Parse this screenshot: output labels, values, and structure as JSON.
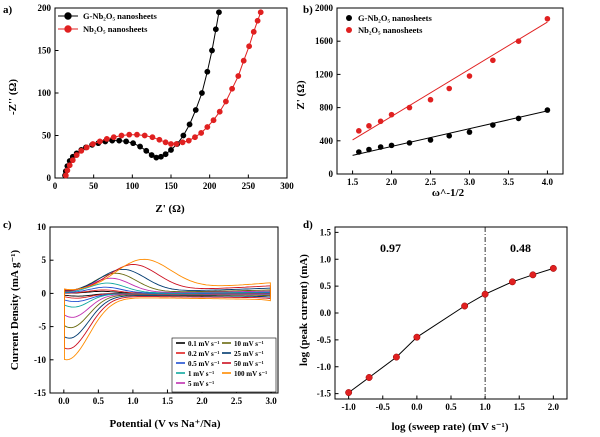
{
  "chart_data": [
    {
      "panel": "a)",
      "type": "line",
      "xlabel": "Z' (Ω)",
      "ylabel": "-Z'' (Ω)",
      "xlim": [
        0,
        300
      ],
      "ylim": [
        0,
        200
      ],
      "xticks": [
        0,
        50,
        100,
        150,
        200,
        250,
        300
      ],
      "yticks": [
        0,
        50,
        100,
        150,
        200
      ],
      "legend_position": "top-left",
      "series": [
        {
          "name": "G-Nb₂O₅ nanosheets",
          "color": "#000000",
          "x": [
            13,
            14,
            16,
            19,
            23,
            28,
            34,
            40,
            48,
            56,
            65,
            74,
            83,
            92,
            101,
            110,
            118,
            125,
            131,
            137,
            143,
            150,
            158,
            166,
            174,
            182,
            190,
            197,
            203,
            208,
            212
          ],
          "y": [
            3,
            8,
            14,
            20,
            25,
            29,
            33,
            36,
            39,
            41,
            43,
            44,
            44,
            43,
            41,
            37,
            32,
            27,
            24,
            25,
            28,
            33,
            40,
            50,
            63,
            80,
            100,
            125,
            150,
            175,
            195
          ]
        },
        {
          "name": "Nb₂O₅ nanosheets",
          "color": "#e02020",
          "x": [
            14,
            16,
            19,
            23,
            28,
            34,
            41,
            49,
            58,
            67,
            76,
            86,
            96,
            106,
            116,
            126,
            135,
            143,
            150,
            157,
            165,
            173,
            181,
            189,
            197,
            205,
            213,
            221,
            229,
            237,
            244,
            251,
            257,
            262,
            266
          ],
          "y": [
            3,
            9,
            15,
            21,
            27,
            32,
            36,
            40,
            43,
            46,
            48,
            50,
            51,
            51,
            50,
            48,
            45,
            42,
            40,
            40,
            42,
            44,
            48,
            53,
            60,
            68,
            78,
            90,
            105,
            120,
            138,
            155,
            172,
            185,
            195
          ]
        }
      ]
    },
    {
      "panel": "b)",
      "type": "scatter",
      "xlabel": "ω^-1/2",
      "ylabel": "Z' (Ω)",
      "xlim": [
        1.3,
        4.2
      ],
      "ylim": [
        0,
        2000
      ],
      "xticks": [
        1.5,
        2.0,
        2.5,
        3.0,
        3.5,
        4.0
      ],
      "yticks": [
        0,
        400,
        800,
        1200,
        1600,
        2000
      ],
      "legend_position": "top-left",
      "series": [
        {
          "name": "G-Nb₂O₅ nanosheets",
          "color": "#000000",
          "x": [
            1.58,
            1.71,
            1.86,
            2.0,
            2.23,
            2.5,
            2.74,
            3.0,
            3.3,
            3.63,
            4.0
          ],
          "y": [
            265,
            295,
            325,
            345,
            375,
            410,
            460,
            505,
            590,
            670,
            770
          ],
          "fit": [
            [
              1.5,
              225
            ],
            [
              4.0,
              760
            ]
          ]
        },
        {
          "name": "Nb₂O₅ nanosheets",
          "color": "#e02020",
          "x": [
            1.58,
            1.71,
            1.86,
            2.0,
            2.23,
            2.5,
            2.74,
            3.0,
            3.3,
            3.63,
            4.0
          ],
          "y": [
            520,
            580,
            635,
            715,
            800,
            895,
            1030,
            1180,
            1370,
            1600,
            1870
          ],
          "fit": [
            [
              1.5,
              410
            ],
            [
              4.0,
              1830
            ]
          ]
        }
      ]
    },
    {
      "panel": "c)",
      "type": "line",
      "xlabel": "Potential (V vs Na⁺/Na)",
      "ylabel": "Current Density (mA g⁻¹)",
      "xlim": [
        -0.2,
        3.1
      ],
      "ylim": [
        -15,
        10
      ],
      "xticks": [
        0.0,
        0.5,
        1.0,
        1.5,
        2.0,
        2.5,
        3.0
      ],
      "yticks": [
        -15,
        -10,
        -5,
        0,
        5,
        10
      ],
      "legend_position": "bottom-right",
      "series": [
        {
          "name": "0.1 mV s⁻¹",
          "color": "#000000",
          "ox": 0.55,
          "ow": 0.2,
          "ip": 0.3,
          "rx": 0.2,
          "rw": 0.2,
          "ir": -0.4,
          "c": 0.04
        },
        {
          "name": "0.2 mV s⁻¹",
          "color": "#e02020",
          "ox": 0.58,
          "ow": 0.22,
          "ip": 0.5,
          "rx": 0.18,
          "rw": 0.2,
          "ir": -0.7,
          "c": 0.07
        },
        {
          "name": "0.5 mV s⁻¹",
          "color": "#2050d0",
          "ox": 0.6,
          "ow": 0.24,
          "ip": 0.9,
          "rx": 0.16,
          "rw": 0.22,
          "ir": -1.2,
          "c": 0.12
        },
        {
          "name": "1 mV s⁻¹",
          "color": "#10a8a0",
          "ox": 0.63,
          "ow": 0.26,
          "ip": 1.5,
          "rx": 0.14,
          "rw": 0.22,
          "ir": -2.0,
          "c": 0.18
        },
        {
          "name": "5 mV s⁻¹",
          "color": "#c030b0",
          "ox": 0.68,
          "ow": 0.28,
          "ip": 2.2,
          "rx": 0.12,
          "rw": 0.24,
          "ir": -3.5,
          "c": 0.3
        },
        {
          "name": "10 mV s⁻¹",
          "color": "#6a6a10",
          "ox": 0.75,
          "ow": 0.3,
          "ip": 2.9,
          "rx": 0.1,
          "rw": 0.26,
          "ir": -5.0,
          "c": 0.45
        },
        {
          "name": "25 mV s⁻¹",
          "color": "#003a70",
          "ox": 0.85,
          "ow": 0.33,
          "ip": 3.4,
          "rx": 0.08,
          "rw": 0.28,
          "ir": -6.5,
          "c": 0.7
        },
        {
          "name": "50 mV s⁻¹",
          "color": "#cc1020",
          "ox": 1.0,
          "ow": 0.36,
          "ip": 4.0,
          "rx": 0.06,
          "rw": 0.3,
          "ir": -8.0,
          "c": 1.0
        },
        {
          "name": "100 mV s⁻¹",
          "color": "#ff8c00",
          "ox": 1.15,
          "ow": 0.4,
          "ip": 4.6,
          "rx": 0.04,
          "rw": 0.32,
          "ir": -9.5,
          "c": 1.4
        }
      ]
    },
    {
      "panel": "d)",
      "type": "scatter",
      "xlabel": "log (sweep rate) (mV s⁻¹)",
      "ylabel": "log (peak current) (mA)",
      "xlim": [
        -1.2,
        2.2
      ],
      "ylim": [
        -1.6,
        1.6
      ],
      "xticks": [
        -1.0,
        -0.5,
        0.0,
        0.5,
        1.0,
        1.5,
        2.0
      ],
      "yticks": [
        -1.5,
        -1.0,
        -0.5,
        0.0,
        0.5,
        1.0,
        1.5
      ],
      "x": [
        -1.0,
        -0.7,
        -0.3,
        0.0,
        0.7,
        1.0,
        1.4,
        1.7,
        2.0
      ],
      "y": [
        -1.48,
        -1.2,
        -0.82,
        -0.45,
        0.13,
        0.35,
        0.58,
        0.71,
        0.83
      ],
      "point_color": "#e02020",
      "divider_x": 1.0,
      "slope_low": "0.97",
      "slope_high": "0.48"
    }
  ]
}
